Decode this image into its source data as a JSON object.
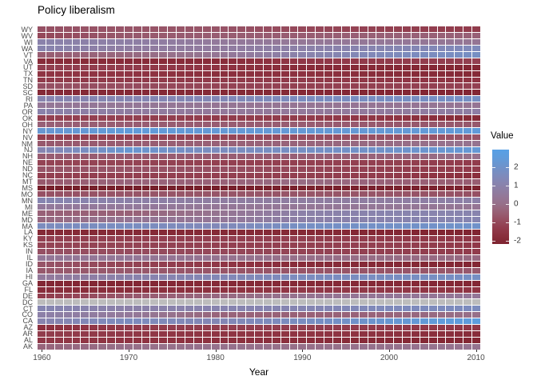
{
  "title": "Policy liberalism",
  "axes": {
    "x_label": "Year",
    "x_ticks": [
      1960,
      1970,
      1980,
      1990,
      2000,
      2010
    ]
  },
  "legend": {
    "title": "Value",
    "ticks": [
      2,
      1,
      0,
      -1,
      -2
    ]
  },
  "chart_data": {
    "type": "heatmap",
    "title": "Policy liberalism",
    "xlabel": "Year",
    "x_range": [
      1960,
      2010
    ],
    "x_step": 1,
    "sample_years": [
      1960,
      1970,
      1980,
      1990,
      2000,
      2010
    ],
    "states_top_to_bottom": [
      "WY",
      "WV",
      "WI",
      "WA",
      "VT",
      "VA",
      "UT",
      "TX",
      "TN",
      "SD",
      "SC",
      "RI",
      "PA",
      "OR",
      "OK",
      "OH",
      "NY",
      "NV",
      "NM",
      "NJ",
      "NH",
      "NE",
      "ND",
      "NC",
      "MT",
      "MS",
      "MO",
      "MN",
      "MI",
      "ME",
      "MD",
      "MA",
      "LA",
      "KY",
      "KS",
      "IN",
      "IL",
      "ID",
      "IA",
      "HI",
      "GA",
      "FL",
      "DE",
      "DC",
      "CT",
      "CO",
      "CA",
      "AZ",
      "AR",
      "AL",
      "AK"
    ],
    "values_by_state": {
      "WY": [
        -0.8,
        -0.7,
        -0.7,
        -1.0,
        -1.2,
        -1.3
      ],
      "WV": [
        -1.0,
        -0.6,
        -0.5,
        -0.5,
        -0.4,
        -0.4
      ],
      "WI": [
        1.0,
        0.8,
        0.5,
        0.4,
        0.4,
        0.3
      ],
      "WA": [
        1.1,
        0.7,
        0.6,
        0.9,
        1.2,
        1.5
      ],
      "VT": [
        -0.5,
        -0.2,
        0.3,
        1.0,
        1.5,
        1.8
      ],
      "VA": [
        -1.8,
        -1.8,
        -1.8,
        -1.4,
        -1.3,
        -1.2
      ],
      "UT": [
        -1.2,
        -1.3,
        -1.5,
        -1.8,
        -1.9,
        -2.0
      ],
      "TX": [
        -1.5,
        -1.5,
        -1.7,
        -1.6,
        -1.8,
        -1.9
      ],
      "TN": [
        -1.3,
        -1.3,
        -1.3,
        -1.3,
        -1.4,
        -1.5
      ],
      "SD": [
        -0.8,
        -0.9,
        -1.1,
        -1.2,
        -1.2,
        -1.2
      ],
      "SC": [
        -1.9,
        -1.9,
        -1.9,
        -1.9,
        -2.0,
        -2.0
      ],
      "RI": [
        1.1,
        1.2,
        1.3,
        1.6,
        1.7,
        1.8
      ],
      "PA": [
        0.4,
        0.4,
        0.3,
        0.3,
        0.3,
        0.3
      ],
      "OR": [
        1.0,
        0.7,
        0.5,
        0.5,
        0.6,
        0.8
      ],
      "OK": [
        -1.2,
        -1.2,
        -1.3,
        -1.3,
        -1.5,
        -1.9
      ],
      "OH": [
        -0.4,
        -0.5,
        -0.5,
        -0.5,
        -0.6,
        -0.6
      ],
      "NY": [
        2.2,
        2.4,
        2.3,
        2.3,
        2.3,
        2.4
      ],
      "NV": [
        -1.2,
        -1.2,
        -1.1,
        -0.9,
        -0.8,
        -0.7
      ],
      "NM": [
        -0.6,
        -0.5,
        -0.4,
        -0.3,
        -0.1,
        0.2
      ],
      "NJ": [
        1.2,
        2.2,
        1.6,
        1.8,
        2.0,
        2.3
      ],
      "NH": [
        -0.5,
        -0.5,
        -0.5,
        -0.4,
        -0.3,
        0.1
      ],
      "NE": [
        -1.1,
        -1.1,
        -1.2,
        -1.2,
        -1.2,
        -1.3
      ],
      "ND": [
        -0.7,
        -0.7,
        -0.8,
        -1.0,
        -1.2,
        -1.3
      ],
      "NC": [
        -1.2,
        -1.2,
        -1.2,
        -1.2,
        -1.3,
        -1.7
      ],
      "MT": [
        -0.6,
        -0.3,
        -0.4,
        -0.1,
        -0.4,
        -0.5
      ],
      "MS": [
        -2.4,
        -2.4,
        -2.4,
        -2.3,
        -2.3,
        -2.2
      ],
      "MO": [
        -0.8,
        -0.7,
        -0.7,
        -0.7,
        -0.7,
        -0.8
      ],
      "MN": [
        1.2,
        0.9,
        0.7,
        0.7,
        0.7,
        0.9
      ],
      "MI": [
        0.5,
        0.5,
        0.4,
        0.4,
        0.4,
        0.3
      ],
      "ME": [
        -0.4,
        -0.4,
        0.2,
        0.9,
        1.1,
        1.1
      ],
      "MD": [
        -0.2,
        0.3,
        0.4,
        0.9,
        1.1,
        1.2
      ],
      "MA": [
        1.6,
        1.7,
        1.4,
        1.8,
        1.9,
        2.0
      ],
      "LA": [
        -1.9,
        -1.9,
        -1.9,
        -1.9,
        -2.0,
        -2.1
      ],
      "KY": [
        -1.2,
        -1.2,
        -1.2,
        -1.2,
        -1.3,
        -1.4
      ],
      "KS": [
        -1.1,
        -1.1,
        -1.2,
        -1.2,
        -1.2,
        -1.4
      ],
      "IN": [
        -0.8,
        -0.9,
        -1.0,
        -1.1,
        -1.2,
        -1.3
      ],
      "IL": [
        0.4,
        0.4,
        0.2,
        0.0,
        -0.1,
        -0.2
      ],
      "ID": [
        -0.7,
        -1.1,
        -1.4,
        -1.8,
        -1.9,
        -2.0
      ],
      "IA": [
        -0.6,
        -0.6,
        -0.7,
        -0.7,
        -0.7,
        -0.6
      ],
      "HI": [
        0.5,
        1.0,
        1.3,
        1.6,
        1.7,
        1.8
      ],
      "GA": [
        -2.0,
        -2.0,
        -1.9,
        -1.9,
        -1.9,
        -2.0
      ],
      "FL": [
        -1.8,
        -1.7,
        -1.6,
        -1.4,
        -1.4,
        -1.5
      ],
      "DE": [
        -1.3,
        -0.6,
        -0.2,
        0.2,
        0.4,
        0.4
      ],
      "DC": null,
      "CT": [
        1.2,
        0.9,
        1.1,
        1.2,
        1.5,
        1.6
      ],
      "CO": [
        0.9,
        0.5,
        -0.3,
        -0.4,
        -0.3,
        0.0
      ],
      "CA": [
        1.1,
        1.6,
        1.3,
        1.7,
        2.2,
        2.6
      ],
      "AZ": [
        -1.6,
        -1.3,
        -1.2,
        -1.2,
        -1.3,
        -1.4
      ],
      "AR": [
        -1.3,
        -1.4,
        -1.5,
        -1.5,
        -1.6,
        -1.8
      ],
      "AL": [
        -1.4,
        -1.5,
        -1.6,
        -1.7,
        -1.9,
        -2.0
      ],
      "AK": [
        -0.3,
        0.0,
        0.1,
        0.0,
        0.1,
        0.2
      ]
    },
    "na_color": "#bdbdbd",
    "color_scale": {
      "legend_title": "Value",
      "legend_ticks": [
        2,
        1,
        0,
        -1,
        -2
      ],
      "bar_top_value": 2.96,
      "bar_bottom_value": -2.17,
      "stops": [
        [
          -2.6,
          "#701c27"
        ],
        [
          -2.0,
          "#832734"
        ],
        [
          -1.5,
          "#8f3443"
        ],
        [
          -1.0,
          "#95485a"
        ],
        [
          -0.5,
          "#985d72"
        ],
        [
          0.0,
          "#977089"
        ],
        [
          0.5,
          "#93799b"
        ],
        [
          1.0,
          "#8a82ab"
        ],
        [
          1.5,
          "#7f8abb"
        ],
        [
          2.0,
          "#7092c9"
        ],
        [
          2.4,
          "#619bd9"
        ],
        [
          2.96,
          "#57a0e6"
        ]
      ]
    }
  }
}
